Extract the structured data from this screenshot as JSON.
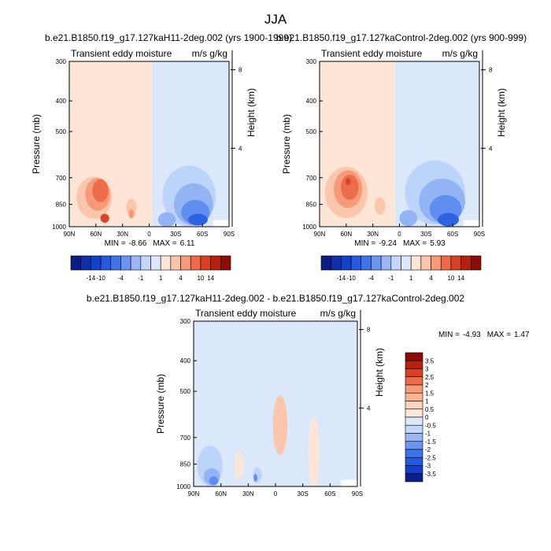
{
  "title": "JJA",
  "colors": {
    "land": "#ffffff",
    "axis": "#000000"
  },
  "chart_data": [
    {
      "id": "top-left",
      "type": "heatmap",
      "title": "b.e21.B1850.f19_g17.127kaH11-2deg.002 (yrs 1900-1999)",
      "left_label": "Transient eddy moisture",
      "right_label": "m/s g/kg",
      "ylabel": "Pressure (mb)",
      "y2label": "Height (km)",
      "x_ticks": [
        "90N",
        "60N",
        "30N",
        "0",
        "30S",
        "60S",
        "90S"
      ],
      "x_range": [
        90,
        -90
      ],
      "y_ticks": [
        300,
        400,
        500,
        700,
        850,
        1000
      ],
      "y2_ticks": [
        8,
        4
      ],
      "ylim": [
        1000,
        300
      ],
      "min_label": "MIN =",
      "min_value": "-8.66",
      "max_label": "MAX =",
      "max_value": "6.11",
      "colorbar": {
        "labels": [
          "-14",
          "-10",
          "-4",
          "-1",
          "1",
          "4",
          "10",
          "14"
        ],
        "colors": [
          "#0a1f85",
          "#0d2fa8",
          "#1540c9",
          "#2459e0",
          "#3f73ea",
          "#6c94f0",
          "#9ab6f5",
          "#c4d6fa",
          "#dde8fc",
          "#fde6d6",
          "#fcc4a8",
          "#f79a78",
          "#ef6a48",
          "#d84020",
          "#b3220f",
          "#8a0d06"
        ]
      },
      "blobs": [
        {
          "x": 62,
          "p": 810,
          "rx": 20,
          "rp": 230,
          "level": 1
        },
        {
          "x": 58,
          "p": 790,
          "rx": 14,
          "rp": 170,
          "level": 2
        },
        {
          "x": 55,
          "p": 770,
          "rx": 9,
          "rp": 110,
          "level": 3
        },
        {
          "x": 50,
          "p": 940,
          "rx": 5,
          "rp": 40,
          "level": 4
        },
        {
          "x": 20,
          "p": 870,
          "rx": 6,
          "rp": 90,
          "level": 1
        },
        {
          "x": 20,
          "p": 910,
          "rx": 3,
          "rp": 40,
          "level": 2
        },
        {
          "x": -45,
          "p": 800,
          "rx": 30,
          "rp": 330,
          "level": -1
        },
        {
          "x": -50,
          "p": 850,
          "rx": 22,
          "rp": 240,
          "level": -2
        },
        {
          "x": -52,
          "p": 900,
          "rx": 16,
          "rp": 140,
          "level": -3
        },
        {
          "x": -55,
          "p": 950,
          "rx": 11,
          "rp": 60,
          "level": -4
        },
        {
          "x": -20,
          "p": 950,
          "rx": 10,
          "rp": 80,
          "level": -2
        }
      ],
      "background": [
        {
          "from": 90,
          "to": -3,
          "level": 0.5
        },
        {
          "from": -3,
          "to": -90,
          "level": -0.5
        }
      ]
    },
    {
      "id": "top-right",
      "type": "heatmap",
      "title": "b.e21.B1850.f19_g17.127kaControl-2deg.002 (yrs 900-999)",
      "left_label": "Transient eddy moisture",
      "right_label": "m/s g/kg",
      "ylabel": "Pressure (mb)",
      "y2label": "Height (km)",
      "x_ticks": [
        "90N",
        "60N",
        "30N",
        "0",
        "30S",
        "60S",
        "90S"
      ],
      "x_range": [
        90,
        -90
      ],
      "y_ticks": [
        300,
        400,
        500,
        700,
        850,
        1000
      ],
      "y2_ticks": [
        8,
        4
      ],
      "ylim": [
        1000,
        300
      ],
      "min_label": "MIN =",
      "min_value": "-9.24",
      "max_label": "MAX =",
      "max_value": "5.93",
      "colorbar": {
        "labels": [
          "-14",
          "-10",
          "-4",
          "-1",
          "1",
          "4",
          "10",
          "14"
        ],
        "colors": [
          "#0a1f85",
          "#0d2fa8",
          "#1540c9",
          "#2459e0",
          "#3f73ea",
          "#6c94f0",
          "#9ab6f5",
          "#c4d6fa",
          "#dde8fc",
          "#fde6d6",
          "#fcc4a8",
          "#f79a78",
          "#ef6a48",
          "#d84020",
          "#b3220f",
          "#8a0d06"
        ]
      },
      "blobs": [
        {
          "x": 60,
          "p": 780,
          "rx": 24,
          "rp": 270,
          "level": 1
        },
        {
          "x": 58,
          "p": 760,
          "rx": 16,
          "rp": 190,
          "level": 2
        },
        {
          "x": 56,
          "p": 750,
          "rx": 10,
          "rp": 120,
          "level": 3
        },
        {
          "x": 58,
          "p": 720,
          "rx": 3,
          "rp": 20,
          "level": 4
        },
        {
          "x": 22,
          "p": 860,
          "rx": 6,
          "rp": 90,
          "level": 1
        },
        {
          "x": -40,
          "p": 780,
          "rx": 34,
          "rp": 340,
          "level": -1
        },
        {
          "x": -48,
          "p": 830,
          "rx": 26,
          "rp": 250,
          "level": -2
        },
        {
          "x": -52,
          "p": 880,
          "rx": 18,
          "rp": 160,
          "level": -3
        },
        {
          "x": -55,
          "p": 950,
          "rx": 12,
          "rp": 70,
          "level": -4
        },
        {
          "x": -10,
          "p": 940,
          "rx": 10,
          "rp": 90,
          "level": -2
        }
      ],
      "background": [
        {
          "from": 90,
          "to": 5,
          "level": 0.5
        },
        {
          "from": 5,
          "to": -90,
          "level": -0.5
        }
      ]
    },
    {
      "id": "bottom",
      "type": "heatmap",
      "title": "b.e21.B1850.f19_g17.127kaH11-2deg.002 - b.e21.B1850.f19_g17.127kaControl-2deg.002",
      "left_label": "Transient eddy moisture",
      "right_label": "m/s g/kg",
      "ylabel": "Pressure (mb)",
      "y2label": "Height (km)",
      "x_ticks": [
        "90N",
        "60N",
        "30N",
        "0",
        "30S",
        "60S",
        "90S"
      ],
      "x_range": [
        90,
        -90
      ],
      "y_ticks": [
        300,
        400,
        500,
        700,
        850,
        1000
      ],
      "y2_ticks": [
        8,
        4
      ],
      "ylim": [
        1000,
        300
      ],
      "min_label": "MIN =",
      "min_value": "-4.93",
      "max_label": "MAX =",
      "max_value": "1.47",
      "colorbar": {
        "labels": [
          "3.5",
          "3",
          "2.5",
          "2",
          "1.5",
          "1",
          "0.5",
          "0",
          "-0.5",
          "-1",
          "-1.5",
          "-2",
          "-2.5",
          "-3",
          "-3.5"
        ],
        "colors": [
          "#8a0d06",
          "#b3220f",
          "#d84020",
          "#ef6a48",
          "#f79a78",
          "#fcb592",
          "#fcd3bd",
          "#fde6d6",
          "#dde8fc",
          "#c4d6fa",
          "#9ab6f5",
          "#6c94f0",
          "#3f73ea",
          "#2459e0",
          "#1540c9",
          "#0a1f85"
        ]
      },
      "blobs": [
        {
          "x": 72,
          "p": 860,
          "rx": 14,
          "rp": 230,
          "level": -1
        },
        {
          "x": 70,
          "p": 930,
          "rx": 9,
          "rp": 90,
          "level": -2
        },
        {
          "x": 68,
          "p": 960,
          "rx": 5,
          "rp": 40,
          "level": -3
        },
        {
          "x": 20,
          "p": 920,
          "rx": 5,
          "rp": 80,
          "level": -1
        },
        {
          "x": 22,
          "p": 940,
          "rx": 2,
          "rp": 30,
          "level": -3
        },
        {
          "x": 40,
          "p": 860,
          "rx": 5,
          "rp": 160,
          "level": 0.5
        },
        {
          "x": -5,
          "p": 640,
          "rx": 8,
          "rp": 260,
          "level": 1
        },
        {
          "x": -42,
          "p": 780,
          "rx": 6,
          "rp": 380,
          "level": 0.5
        }
      ],
      "background": [
        {
          "from": 90,
          "to": -90,
          "level": -0.5
        }
      ]
    }
  ]
}
